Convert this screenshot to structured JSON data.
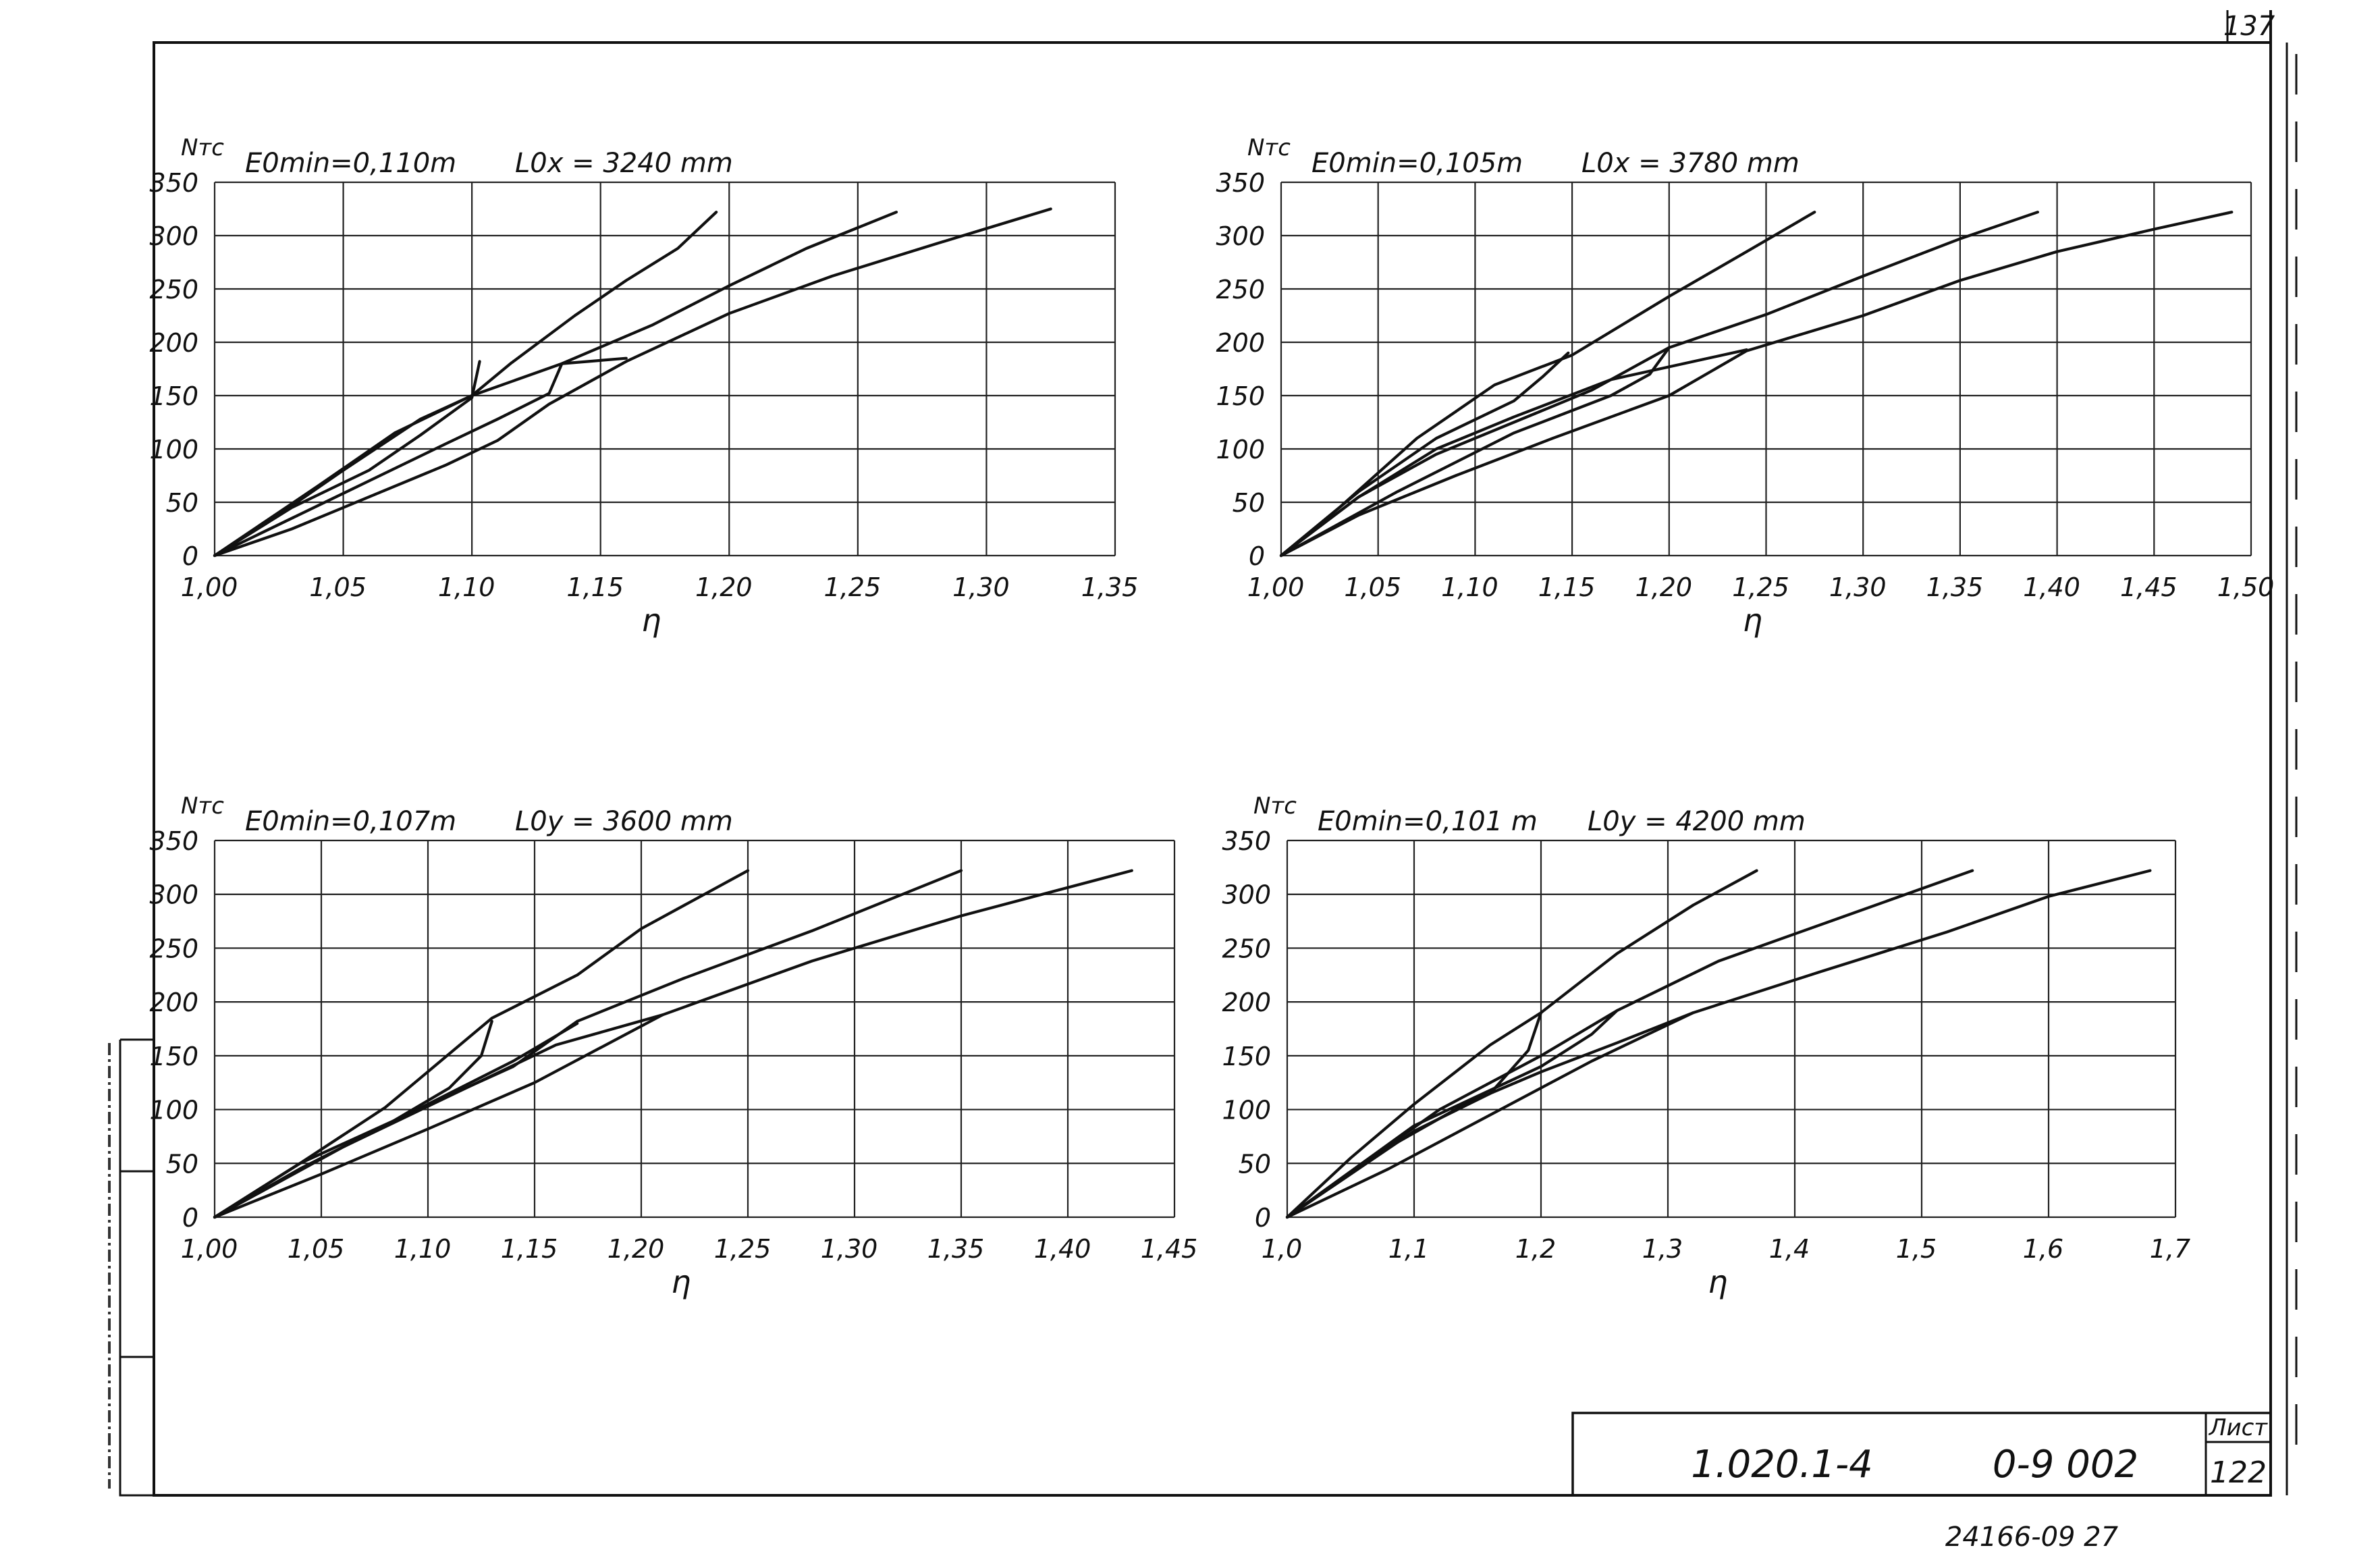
{
  "page_number": "137",
  "stamp": {
    "code": "1.020.1-4",
    "sheet_code": "0-9 002",
    "sheet_label": "Лист",
    "sheet_number": "122"
  },
  "bottom_code": "24166-09 27",
  "colors": {
    "ink": "#111111",
    "paper": "#ffffff"
  },
  "chart_data": [
    {
      "type": "line",
      "ylabel": "Nтс",
      "xlabel": "η",
      "params": [
        "E0min=0,110m",
        "L0x = 3240 mm"
      ],
      "xlim": [
        1.0,
        1.35
      ],
      "ylim": [
        0,
        350
      ],
      "x_ticks": [
        "1,00",
        "1,05",
        "1,10",
        "1,15",
        "1,20",
        "1,25",
        "1,30",
        "1,35"
      ],
      "y_ticks": [
        "0",
        "50",
        "100",
        "150",
        "200",
        "250",
        "300",
        "350"
      ],
      "grid": true,
      "series": [
        {
          "points": [
            [
              1.0,
              0
            ],
            [
              1.02,
              30
            ],
            [
              1.05,
              80
            ],
            [
              1.08,
              128
            ],
            [
              1.1,
              150
            ],
            [
              1.115,
              180
            ],
            [
              1.14,
              225
            ],
            [
              1.16,
              258
            ],
            [
              1.18,
              288
            ],
            [
              1.195,
              322
            ]
          ]
        },
        {
          "points": [
            [
              1.0,
              0
            ],
            [
              1.03,
              35
            ],
            [
              1.06,
              70
            ],
            [
              1.09,
              105
            ],
            [
              1.11,
              128
            ],
            [
              1.13,
              152
            ],
            [
              1.135,
              180
            ],
            [
              1.17,
              216
            ],
            [
              1.2,
              253
            ],
            [
              1.23,
              288
            ],
            [
              1.265,
              322
            ]
          ]
        },
        {
          "points": [
            [
              1.0,
              0
            ],
            [
              1.03,
              25
            ],
            [
              1.06,
              55
            ],
            [
              1.09,
              85
            ],
            [
              1.11,
              108
            ],
            [
              1.13,
              142
            ],
            [
              1.16,
              182
            ],
            [
              1.2,
              227
            ],
            [
              1.24,
              262
            ],
            [
              1.28,
              292
            ],
            [
              1.325,
              325
            ]
          ]
        },
        {
          "points": [
            [
              1.0,
              0
            ],
            [
              1.04,
              65
            ],
            [
              1.07,
              115
            ],
            [
              1.1,
              150
            ],
            [
              1.135,
              180
            ],
            [
              1.16,
              185
            ]
          ]
        },
        {
          "points": [
            [
              1.0,
              0
            ],
            [
              1.03,
              45
            ],
            [
              1.06,
              80
            ],
            [
              1.08,
              113
            ],
            [
              1.1,
              148
            ],
            [
              1.103,
              182
            ]
          ]
        }
      ]
    },
    {
      "type": "line",
      "ylabel": "Nтс",
      "xlabel": "η",
      "params": [
        "E0min=0,105m",
        "L0x = 3780 mm"
      ],
      "xlim": [
        1.0,
        1.5
      ],
      "ylim": [
        0,
        350
      ],
      "x_ticks": [
        "1,00",
        "1,05",
        "1,10",
        "1,15",
        "1,20",
        "1,25",
        "1,30",
        "1,35",
        "1,40",
        "1,45",
        "1,50"
      ],
      "y_ticks": [
        "0",
        "50",
        "100",
        "150",
        "200",
        "250",
        "300",
        "350"
      ],
      "grid": true,
      "series": [
        {
          "points": [
            [
              1.0,
              0
            ],
            [
              1.03,
              45
            ],
            [
              1.07,
              110
            ],
            [
              1.11,
              160
            ],
            [
              1.15,
              188
            ],
            [
              1.2,
              243
            ],
            [
              1.24,
              285
            ],
            [
              1.275,
              322
            ]
          ]
        },
        {
          "points": [
            [
              1.0,
              0
            ],
            [
              1.04,
              55
            ],
            [
              1.08,
              95
            ],
            [
              1.12,
              125
            ],
            [
              1.16,
              155
            ],
            [
              1.2,
              195
            ],
            [
              1.25,
              226
            ],
            [
              1.3,
              262
            ],
            [
              1.35,
              297
            ],
            [
              1.39,
              322
            ]
          ]
        },
        {
          "points": [
            [
              1.0,
              0
            ],
            [
              1.04,
              38
            ],
            [
              1.09,
              75
            ],
            [
              1.14,
              110
            ],
            [
              1.2,
              150
            ],
            [
              1.24,
              192
            ],
            [
              1.3,
              225
            ],
            [
              1.35,
              258
            ],
            [
              1.4,
              285
            ],
            [
              1.45,
              306
            ],
            [
              1.49,
              322
            ]
          ]
        },
        {
          "points": [
            [
              1.0,
              0
            ],
            [
              1.04,
              55
            ],
            [
              1.08,
              100
            ],
            [
              1.12,
              130
            ],
            [
              1.17,
              165
            ],
            [
              1.24,
              193
            ]
          ]
        },
        {
          "points": [
            [
              1.0,
              0
            ],
            [
              1.04,
              60
            ],
            [
              1.08,
              110
            ],
            [
              1.12,
              145
            ],
            [
              1.135,
              168
            ],
            [
              1.148,
              190
            ]
          ]
        },
        {
          "points": [
            [
              1.0,
              0
            ],
            [
              1.06,
              60
            ],
            [
              1.12,
              115
            ],
            [
              1.17,
              150
            ],
            [
              1.19,
              170
            ],
            [
              1.2,
              195
            ]
          ]
        }
      ]
    },
    {
      "type": "line",
      "ylabel": "Nтс",
      "xlabel": "η",
      "params": [
        "E0min=0,107m",
        "L0y = 3600 mm"
      ],
      "xlim": [
        1.0,
        1.45
      ],
      "ylim": [
        0,
        350
      ],
      "x_ticks": [
        "1,00",
        "1,05",
        "1,10",
        "1,15",
        "1,20",
        "1,25",
        "1,30",
        "1,35",
        "1,40",
        "1,45"
      ],
      "y_ticks": [
        "0",
        "50",
        "100",
        "150",
        "200",
        "250",
        "300",
        "350"
      ],
      "grid": true,
      "series": [
        {
          "points": [
            [
              1.0,
              0
            ],
            [
              1.04,
              50
            ],
            [
              1.08,
              102
            ],
            [
              1.13,
              185
            ],
            [
              1.17,
              225
            ],
            [
              1.2,
              268
            ],
            [
              1.25,
              322
            ]
          ]
        },
        {
          "points": [
            [
              1.0,
              0
            ],
            [
              1.04,
              50
            ],
            [
              1.09,
              95
            ],
            [
              1.14,
              140
            ],
            [
              1.17,
              182
            ],
            [
              1.22,
              222
            ],
            [
              1.28,
              266
            ],
            [
              1.35,
              322
            ]
          ]
        },
        {
          "points": [
            [
              1.0,
              0
            ],
            [
              1.05,
              40
            ],
            [
              1.1,
              82
            ],
            [
              1.15,
              125
            ],
            [
              1.21,
              188
            ],
            [
              1.28,
              238
            ],
            [
              1.35,
              280
            ],
            [
              1.43,
              322
            ]
          ]
        },
        {
          "points": [
            [
              1.0,
              0
            ],
            [
              1.05,
              55
            ],
            [
              1.1,
              105
            ],
            [
              1.14,
              145
            ],
            [
              1.17,
              180
            ]
          ]
        },
        {
          "points": [
            [
              1.0,
              0
            ],
            [
              1.04,
              45
            ],
            [
              1.08,
              85
            ],
            [
              1.11,
              120
            ],
            [
              1.125,
              150
            ],
            [
              1.13,
              182
            ]
          ]
        },
        {
          "points": [
            [
              1.0,
              0
            ],
            [
              1.06,
              65
            ],
            [
              1.12,
              122
            ],
            [
              1.16,
              160
            ],
            [
              1.21,
              188
            ]
          ]
        }
      ]
    },
    {
      "type": "line",
      "ylabel": "Nтс",
      "xlabel": "η",
      "params": [
        "E0min=0,101 m",
        "L0y = 4200 mm"
      ],
      "xlim": [
        1.0,
        1.7
      ],
      "ylim": [
        0,
        350
      ],
      "x_ticks": [
        "1,0",
        "1,1",
        "1,2",
        "1,3",
        "1,4",
        "1,5",
        "1,6",
        "1,7"
      ],
      "y_ticks": [
        "0",
        "50",
        "100",
        "150",
        "200",
        "250",
        "300",
        "350"
      ],
      "grid": true,
      "series": [
        {
          "points": [
            [
              1.0,
              0
            ],
            [
              1.05,
              55
            ],
            [
              1.1,
              105
            ],
            [
              1.16,
              160
            ],
            [
              1.2,
              190
            ],
            [
              1.26,
              245
            ],
            [
              1.32,
              290
            ],
            [
              1.37,
              322
            ]
          ]
        },
        {
          "points": [
            [
              1.0,
              0
            ],
            [
              1.06,
              50
            ],
            [
              1.12,
              100
            ],
            [
              1.2,
              150
            ],
            [
              1.26,
              192
            ],
            [
              1.34,
              238
            ],
            [
              1.44,
              280
            ],
            [
              1.54,
              322
            ]
          ]
        },
        {
          "points": [
            [
              1.0,
              0
            ],
            [
              1.08,
              45
            ],
            [
              1.16,
              95
            ],
            [
              1.24,
              145
            ],
            [
              1.32,
              190
            ],
            [
              1.42,
              228
            ],
            [
              1.52,
              265
            ],
            [
              1.6,
              298
            ],
            [
              1.68,
              322
            ]
          ]
        },
        {
          "points": [
            [
              1.0,
              0
            ],
            [
              1.08,
              65
            ],
            [
              1.14,
              105
            ],
            [
              1.2,
              135
            ],
            [
              1.26,
              162
            ],
            [
              1.32,
              190
            ]
          ]
        },
        {
          "points": [
            [
              1.0,
              0
            ],
            [
              1.05,
              40
            ],
            [
              1.1,
              80
            ],
            [
              1.16,
              115
            ],
            [
              1.19,
              155
            ],
            [
              1.2,
              190
            ]
          ]
        },
        {
          "points": [
            [
              1.0,
              0
            ],
            [
              1.1,
              85
            ],
            [
              1.2,
              140
            ],
            [
              1.24,
              170
            ],
            [
              1.26,
              192
            ]
          ]
        }
      ]
    }
  ]
}
